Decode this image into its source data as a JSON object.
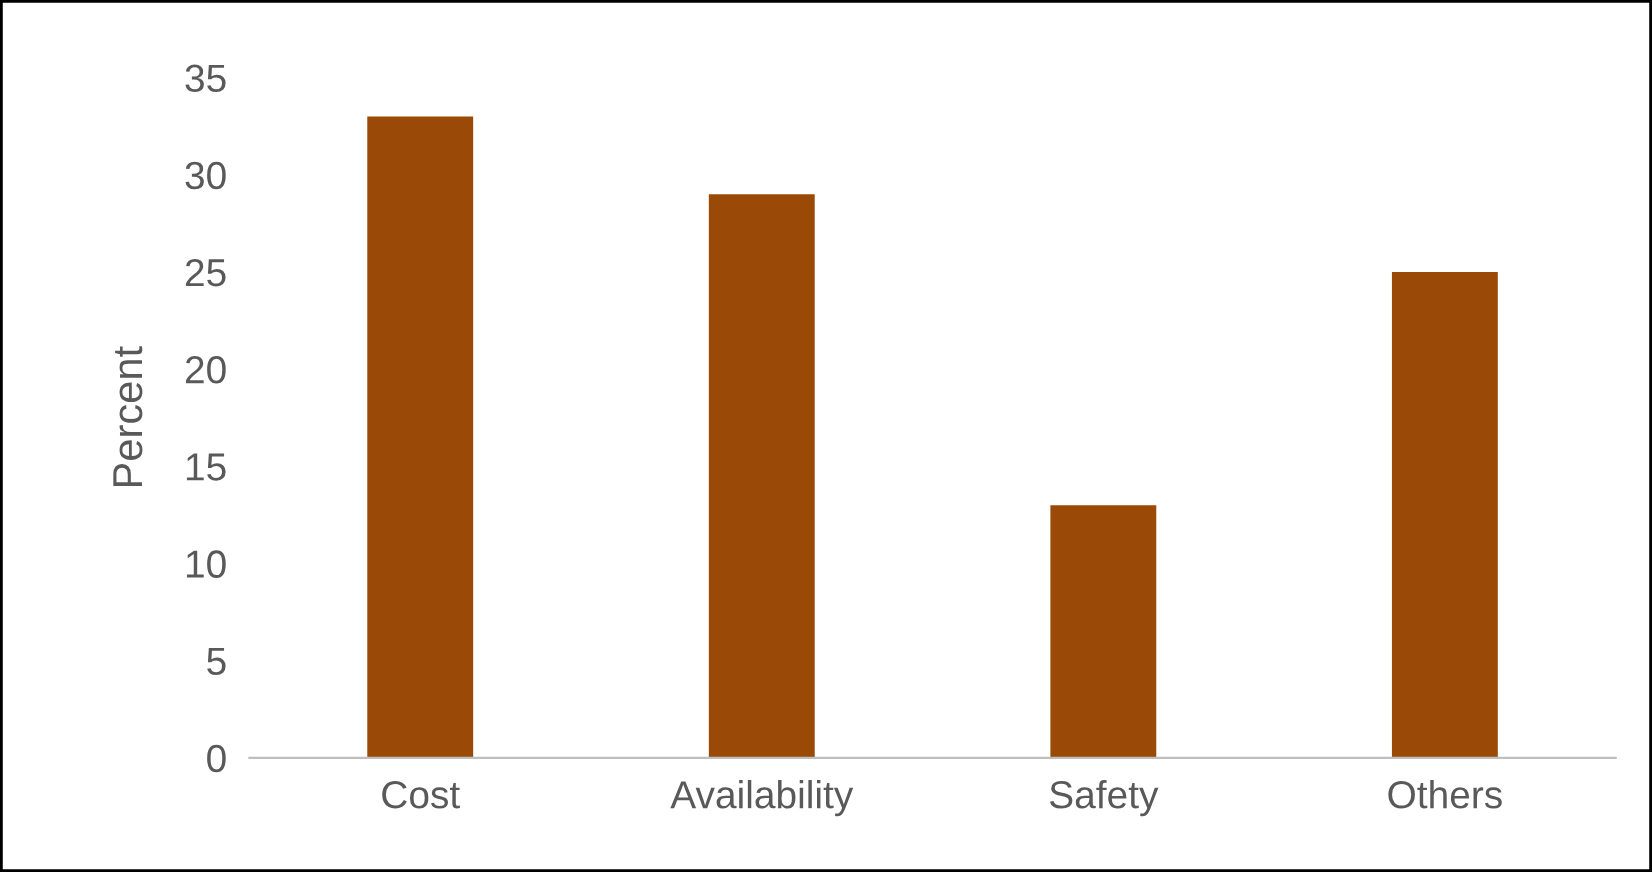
{
  "chart_data": {
    "type": "bar",
    "ylabel": "Percent",
    "categories": [
      "Cost",
      "Availability",
      "Safety",
      "Others"
    ],
    "values": [
      33,
      29,
      13,
      25
    ],
    "color": "#9a4a06",
    "ylim": [
      0,
      35
    ],
    "yticks": [
      0,
      5,
      10,
      15,
      20,
      25,
      30,
      35
    ],
    "grid": false
  }
}
